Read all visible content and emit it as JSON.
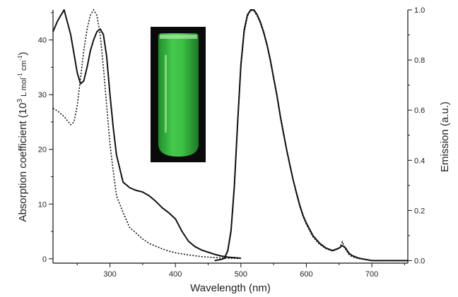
{
  "chart_data": {
    "type": "line",
    "xlabel": "Wavelength (nm)",
    "ylabel_left_prefix": "Absorption coefficient (10",
    "ylabel_left_exp": "3",
    "ylabel_left_suffix": " L mol",
    "ylabel_left_exp2": "-1",
    "ylabel_left_suffix2": " cm",
    "ylabel_left_exp3": "-1",
    "ylabel_left_close": ")",
    "ylabel_right": "Emission (a.u.)",
    "xlim": [
      213,
      755
    ],
    "ylim_left": [
      -0.8,
      45.5
    ],
    "ylim_right": [
      -0.01,
      1.0
    ],
    "x_ticks": [
      "300",
      "400",
      "500",
      "600",
      "700"
    ],
    "x_tick_values": [
      300,
      400,
      500,
      600,
      700
    ],
    "y_left_ticks": [
      "0",
      "10",
      "20",
      "30",
      "40"
    ],
    "y_left_tick_values": [
      0,
      10,
      20,
      30,
      40
    ],
    "y_right_ticks": [
      "0.0",
      "0.2",
      "0.4",
      "0.6",
      "0.8",
      "1.0"
    ],
    "y_right_tick_values": [
      0.0,
      0.2,
      0.4,
      0.6,
      0.8,
      1.0
    ],
    "grid": false,
    "inset": {
      "kind": "photo",
      "subject": "green-emitting vial"
    },
    "series": [
      {
        "axis": "left",
        "style": "solid",
        "x": [
          213,
          220,
          230,
          240,
          250,
          255,
          260,
          265,
          270,
          275,
          280,
          285,
          290,
          295,
          300,
          305,
          310,
          320,
          330,
          340,
          350,
          360,
          370,
          380,
          390,
          400,
          410,
          420,
          430,
          440,
          450,
          460,
          470,
          480,
          490,
          500
        ],
        "y": [
          41.5,
          43.5,
          45.5,
          41,
          34,
          32,
          32.5,
          35,
          38,
          40,
          41.5,
          42,
          41,
          37,
          30,
          24,
          19,
          14,
          13,
          12.5,
          12.2,
          11.5,
          10.5,
          9.3,
          8.4,
          7.3,
          5,
          3.2,
          2.2,
          1.6,
          1.2,
          0.8,
          0.5,
          0.3,
          0.2,
          0.1
        ]
      },
      {
        "axis": "left",
        "style": "dotted",
        "x": [
          213,
          220,
          230,
          240,
          245,
          250,
          255,
          260,
          265,
          270,
          275,
          280,
          285,
          290,
          295,
          300,
          305,
          310,
          320,
          330,
          340,
          350,
          360,
          370,
          380,
          390,
          400,
          420,
          440,
          460,
          480,
          500
        ],
        "y": [
          27.5,
          27,
          26,
          24.5,
          25,
          28,
          33,
          38,
          42,
          44.5,
          45.5,
          44.5,
          41,
          35,
          28,
          21,
          16,
          11.5,
          8.5,
          5.7,
          4.7,
          3.6,
          2.8,
          2.3,
          1.8,
          1.4,
          1.1,
          0.7,
          0.4,
          0.2,
          0.1,
          0.05
        ]
      },
      {
        "axis": "right",
        "style": "solid",
        "x": [
          460,
          470,
          475,
          480,
          485,
          490,
          495,
          500,
          505,
          510,
          515,
          520,
          525,
          530,
          535,
          540,
          545,
          550,
          555,
          560,
          565,
          570,
          575,
          580,
          585,
          590,
          595,
          600,
          610,
          620,
          630,
          640,
          650,
          655,
          660,
          665,
          670,
          680,
          690,
          700,
          720,
          740,
          755
        ],
        "y": [
          0.0,
          0.005,
          0.01,
          0.04,
          0.12,
          0.3,
          0.55,
          0.78,
          0.92,
          0.98,
          1.0,
          1.0,
          0.98,
          0.95,
          0.91,
          0.86,
          0.8,
          0.73,
          0.66,
          0.58,
          0.51,
          0.44,
          0.38,
          0.32,
          0.27,
          0.22,
          0.18,
          0.15,
          0.1,
          0.07,
          0.05,
          0.04,
          0.05,
          0.06,
          0.05,
          0.03,
          0.02,
          0.01,
          0.005,
          0.0,
          0.0,
          0.0,
          0.0
        ]
      },
      {
        "axis": "right",
        "style": "dotted",
        "x": [
          460,
          470,
          475,
          480,
          485,
          490,
          495,
          500,
          505,
          510,
          515,
          520,
          525,
          530,
          535,
          540,
          545,
          550,
          555,
          560,
          565,
          570,
          575,
          580,
          585,
          590,
          595,
          600,
          610,
          620,
          630,
          640,
          650,
          655,
          660,
          665,
          670,
          680,
          700,
          720,
          740,
          755
        ],
        "y": [
          0.0,
          0.004,
          0.009,
          0.038,
          0.115,
          0.29,
          0.54,
          0.77,
          0.91,
          0.975,
          0.998,
          0.995,
          0.975,
          0.945,
          0.905,
          0.855,
          0.795,
          0.725,
          0.655,
          0.575,
          0.505,
          0.44,
          0.375,
          0.32,
          0.265,
          0.215,
          0.175,
          0.145,
          0.095,
          0.065,
          0.048,
          0.038,
          0.048,
          0.075,
          0.045,
          0.025,
          0.015,
          0.008,
          0.0,
          0.0,
          0.0,
          0.0
        ]
      }
    ]
  }
}
